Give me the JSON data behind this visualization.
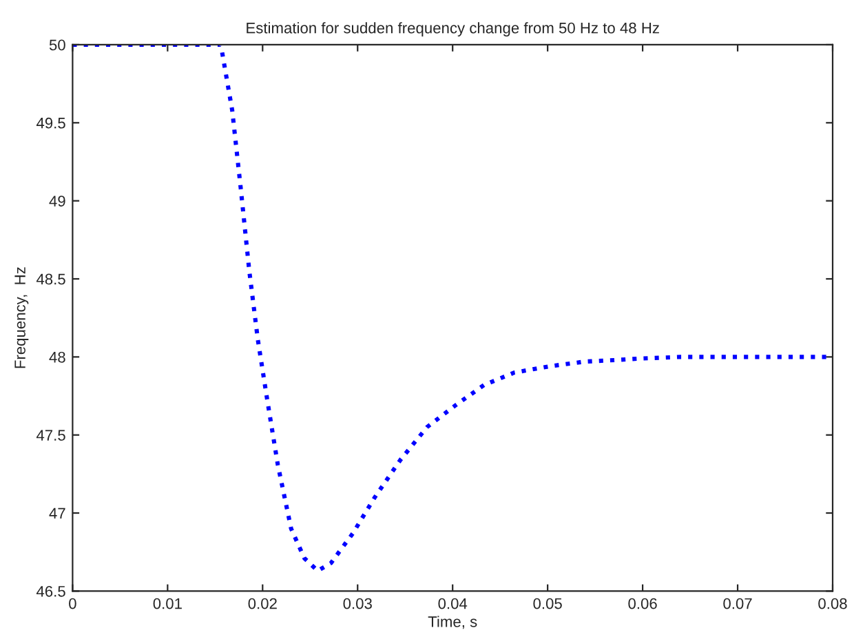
{
  "chart_data": {
    "type": "line",
    "title": "Estimation for sudden frequency change from 50 Hz to 48 Hz",
    "xlabel": "Time, s",
    "ylabel": "Frequency,  Hz",
    "x": [
      0,
      0.005,
      0.01,
      0.0156,
      0.0168,
      0.0177,
      0.0186,
      0.0195,
      0.0205,
      0.0216,
      0.023,
      0.0244,
      0.0258,
      0.0272,
      0.0295,
      0.0318,
      0.0345,
      0.0373,
      0.0403,
      0.0433,
      0.0465,
      0.0502,
      0.0539,
      0.0571,
      0.0599,
      0.064,
      0.07,
      0.08
    ],
    "series": [
      {
        "color": "#0000ff",
        "values": [
          50,
          50,
          50,
          50,
          49.58,
          49.08,
          48.55,
          48.11,
          47.72,
          47.31,
          46.9,
          46.71,
          46.63,
          46.68,
          46.87,
          47.1,
          47.34,
          47.55,
          47.69,
          47.82,
          47.9,
          47.94,
          47.97,
          47.98,
          47.99,
          48,
          48,
          48
        ]
      }
    ],
    "xlim": [
      0,
      0.08
    ],
    "ylim": [
      46.5,
      50
    ],
    "xticks": [
      0,
      0.01,
      0.02,
      0.03,
      0.04,
      0.05,
      0.06,
      0.07,
      0.08
    ],
    "yticks": [
      46.5,
      47,
      47.5,
      48,
      48.5,
      49,
      49.5,
      50
    ],
    "grid": false,
    "line_style": "dotted",
    "legend": false
  }
}
